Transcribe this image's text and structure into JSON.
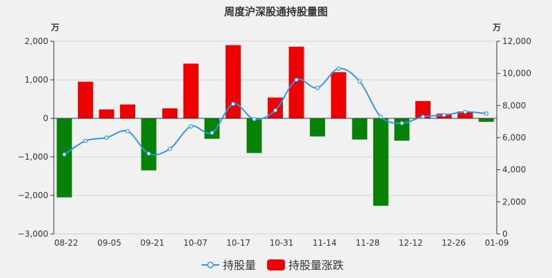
{
  "chart_data": {
    "type": "bar+line",
    "title": "周度沪深股通持股量图",
    "units": {
      "left": "万",
      "right": "万"
    },
    "x_ticks": [
      "08-22",
      "09-05",
      "09-21",
      "10-07",
      "10-17",
      "10-31",
      "11-14",
      "11-28",
      "12-12",
      "12-26",
      "01-09"
    ],
    "left_axis": {
      "min": -3000,
      "max": 2000,
      "ticks": [
        "2,000",
        "1,000",
        "0",
        "−1,000",
        "−2,000",
        "−3,000"
      ]
    },
    "right_axis": {
      "min": 0,
      "max": 12000,
      "ticks": [
        "12,000",
        "10,000",
        "8,000",
        "6,000",
        "4,000",
        "2,000",
        "0"
      ]
    },
    "series": [
      {
        "name": "持股量",
        "kind": "line",
        "axis": "right",
        "color": "#2f95e8",
        "values": [
          4950,
          5800,
          6000,
          6400,
          5000,
          5300,
          6700,
          6300,
          8100,
          7150,
          7700,
          9600,
          9100,
          10300,
          9500,
          7300,
          6900,
          7300,
          7400,
          7600,
          7500
        ]
      },
      {
        "name": "持股量涨跌",
        "kind": "bar",
        "axis": "left",
        "values": [
          -2050,
          950,
          230,
          360,
          -1350,
          260,
          1420,
          -530,
          1900,
          -900,
          540,
          1860,
          -470,
          1200,
          -550,
          -2270,
          -580,
          450,
          120,
          180,
          -90
        ]
      }
    ],
    "colors": {
      "positive": "#ee0000",
      "negative": "#078207",
      "axis": "#333333",
      "grid": "#d8d8d8"
    },
    "legend": {
      "position": "bottom",
      "items": [
        "持股量",
        "持股量涨跌"
      ]
    }
  }
}
